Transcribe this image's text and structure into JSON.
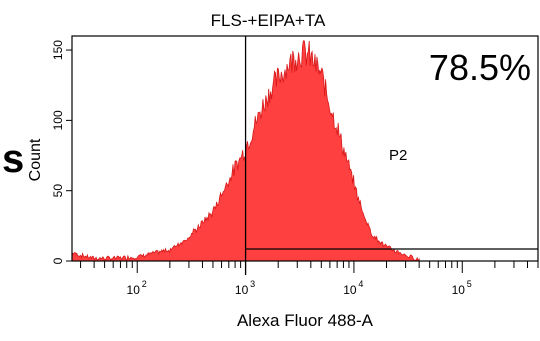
{
  "chart_data": {
    "type": "area",
    "title": "FLS-+EIPA+TA",
    "xlabel": "Alexa Fluor 488-A",
    "ylabel": "Count",
    "x_scale": "log",
    "xlim": [
      25,
      500000
    ],
    "ylim": [
      0,
      160
    ],
    "x_ticks": [
      {
        "value": 100,
        "label": "10",
        "exp": "2"
      },
      {
        "value": 1000,
        "label": "10",
        "exp": "3"
      },
      {
        "value": 10000,
        "label": "10",
        "exp": "4"
      },
      {
        "value": 100000,
        "label": "10",
        "exp": "5"
      }
    ],
    "y_ticks": [
      {
        "value": 0,
        "label": "0"
      },
      {
        "value": 50,
        "label": "50"
      },
      {
        "value": 100,
        "label": "100"
      },
      {
        "value": 150,
        "label": "150"
      }
    ],
    "grid": false,
    "series": [
      {
        "color": "#ff4040",
        "x": [
          25,
          30,
          40,
          60,
          100,
          200,
          300,
          500,
          700,
          1000,
          1300,
          1600,
          2000,
          2500,
          3000,
          3500,
          4000,
          5000,
          6000,
          8000,
          10000,
          12000,
          15000,
          20000,
          30000,
          40000
        ],
        "y": [
          6,
          4,
          2,
          2,
          3,
          8,
          17,
          35,
          58,
          80,
          102,
          118,
          130,
          140,
          147,
          148,
          145,
          132,
          112,
          80,
          55,
          35,
          18,
          10,
          4,
          1
        ]
      }
    ],
    "gate": {
      "name": "P2",
      "x_min": 1000,
      "x_max": 500000,
      "percent": "78.5%"
    }
  },
  "side_label": "s"
}
